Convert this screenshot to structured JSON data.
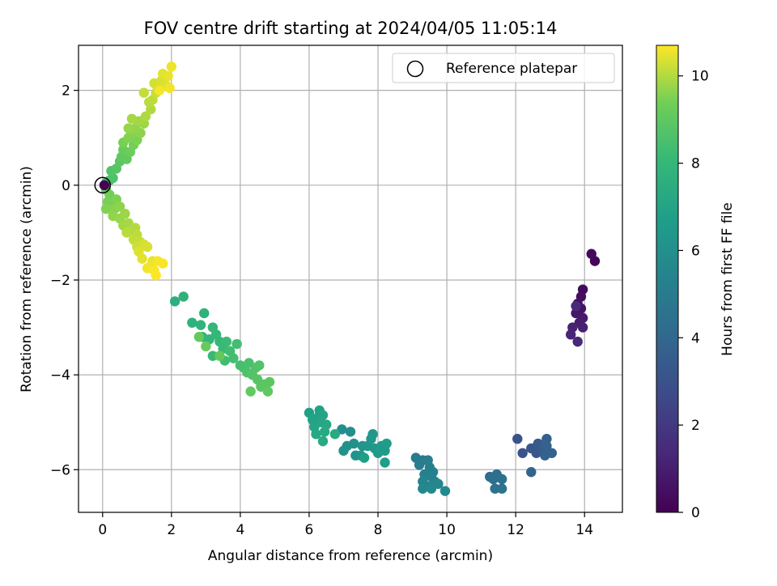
{
  "chart_data": {
    "type": "scatter",
    "title": "FOV centre drift starting at 2024/04/05 11:05:14",
    "xlabel": "Angular distance from reference (arcmin)",
    "ylabel": "Rotation from reference (arcmin)",
    "xlim": [
      -0.7,
      15.1
    ],
    "ylim": [
      -6.9,
      2.95
    ],
    "xticks": [
      0,
      2,
      4,
      6,
      8,
      10,
      12,
      14
    ],
    "yticks": [
      -6,
      -4,
      -2,
      0,
      2
    ],
    "grid": true,
    "legend": {
      "position": "top-right",
      "entries": [
        "Reference platepar"
      ]
    },
    "reference_point": {
      "name": "Reference platepar",
      "x": 0,
      "y": 0
    },
    "colorbar": {
      "label": "Hours from first FF file",
      "range": [
        0,
        10.7
      ],
      "ticks": [
        0,
        2,
        4,
        6,
        8,
        10
      ],
      "colormap": "viridis"
    },
    "points": [
      {
        "x": 14.3,
        "y": -1.6,
        "h": 0.15
      },
      {
        "x": 14.2,
        "y": -1.45,
        "h": 0.25
      },
      {
        "x": 13.95,
        "y": -2.2,
        "h": 0.35
      },
      {
        "x": 13.9,
        "y": -2.35,
        "h": 0.45
      },
      {
        "x": 13.8,
        "y": -2.5,
        "h": 0.55
      },
      {
        "x": 13.9,
        "y": -2.6,
        "h": 0.65
      },
      {
        "x": 13.75,
        "y": -2.7,
        "h": 0.75
      },
      {
        "x": 13.95,
        "y": -2.8,
        "h": 0.85
      },
      {
        "x": 13.85,
        "y": -2.9,
        "h": 0.95
      },
      {
        "x": 13.95,
        "y": -3.0,
        "h": 1.05
      },
      {
        "x": 13.65,
        "y": -3.0,
        "h": 1.15
      },
      {
        "x": 13.6,
        "y": -3.15,
        "h": 1.25
      },
      {
        "x": 13.8,
        "y": -3.3,
        "h": 1.35
      },
      {
        "x": 13.75,
        "y": -2.55,
        "h": 1.45
      },
      {
        "x": 12.05,
        "y": -5.35,
        "h": 3.0
      },
      {
        "x": 12.2,
        "y": -5.65,
        "h": 3.1
      },
      {
        "x": 12.45,
        "y": -5.55,
        "h": 3.2
      },
      {
        "x": 12.6,
        "y": -5.65,
        "h": 3.3
      },
      {
        "x": 12.65,
        "y": -5.45,
        "h": 3.4
      },
      {
        "x": 12.8,
        "y": -5.55,
        "h": 3.5
      },
      {
        "x": 12.9,
        "y": -5.35,
        "h": 3.6
      },
      {
        "x": 12.9,
        "y": -5.5,
        "h": 3.7
      },
      {
        "x": 13.05,
        "y": -5.65,
        "h": 3.75
      },
      {
        "x": 12.85,
        "y": -5.7,
        "h": 3.8
      },
      {
        "x": 12.45,
        "y": -6.05,
        "h": 3.9
      },
      {
        "x": 11.25,
        "y": -6.15,
        "h": 4.2
      },
      {
        "x": 11.45,
        "y": -6.1,
        "h": 4.3
      },
      {
        "x": 11.35,
        "y": -6.2,
        "h": 4.35
      },
      {
        "x": 11.6,
        "y": -6.2,
        "h": 4.4
      },
      {
        "x": 11.4,
        "y": -6.4,
        "h": 4.5
      },
      {
        "x": 11.6,
        "y": -6.4,
        "h": 4.55
      },
      {
        "x": 9.1,
        "y": -5.75,
        "h": 5.0
      },
      {
        "x": 9.3,
        "y": -5.8,
        "h": 5.05
      },
      {
        "x": 9.2,
        "y": -5.9,
        "h": 5.1
      },
      {
        "x": 9.45,
        "y": -5.8,
        "h": 5.15
      },
      {
        "x": 9.5,
        "y": -5.95,
        "h": 5.2
      },
      {
        "x": 9.6,
        "y": -6.05,
        "h": 5.25
      },
      {
        "x": 9.35,
        "y": -6.1,
        "h": 5.3
      },
      {
        "x": 9.55,
        "y": -6.15,
        "h": 5.35
      },
      {
        "x": 9.65,
        "y": -6.25,
        "h": 5.4
      },
      {
        "x": 9.3,
        "y": -6.25,
        "h": 5.45
      },
      {
        "x": 9.45,
        "y": -6.35,
        "h": 5.5
      },
      {
        "x": 9.75,
        "y": -6.3,
        "h": 5.55
      },
      {
        "x": 9.3,
        "y": -6.4,
        "h": 5.6
      },
      {
        "x": 9.55,
        "y": -6.4,
        "h": 5.65
      },
      {
        "x": 9.95,
        "y": -6.45,
        "h": 5.7
      },
      {
        "x": 7.2,
        "y": -5.2,
        "h": 5.9
      },
      {
        "x": 6.95,
        "y": -5.15,
        "h": 5.95
      },
      {
        "x": 7.3,
        "y": -5.45,
        "h": 6.0
      },
      {
        "x": 7.1,
        "y": -5.5,
        "h": 6.05
      },
      {
        "x": 7.0,
        "y": -5.6,
        "h": 6.1
      },
      {
        "x": 7.35,
        "y": -5.7,
        "h": 6.15
      },
      {
        "x": 7.55,
        "y": -5.5,
        "h": 6.2
      },
      {
        "x": 7.5,
        "y": -5.7,
        "h": 6.25
      },
      {
        "x": 7.7,
        "y": -5.5,
        "h": 6.3
      },
      {
        "x": 7.85,
        "y": -5.25,
        "h": 6.35
      },
      {
        "x": 7.8,
        "y": -5.35,
        "h": 6.4
      },
      {
        "x": 7.9,
        "y": -5.55,
        "h": 6.45
      },
      {
        "x": 8.0,
        "y": -5.65,
        "h": 6.5
      },
      {
        "x": 8.1,
        "y": -5.5,
        "h": 6.55
      },
      {
        "x": 8.2,
        "y": -5.6,
        "h": 6.6
      },
      {
        "x": 8.25,
        "y": -5.45,
        "h": 6.65
      },
      {
        "x": 8.2,
        "y": -5.85,
        "h": 6.7
      },
      {
        "x": 7.6,
        "y": -5.75,
        "h": 6.75
      },
      {
        "x": 6.0,
        "y": -4.8,
        "h": 6.8
      },
      {
        "x": 6.3,
        "y": -4.75,
        "h": 6.85
      },
      {
        "x": 6.1,
        "y": -4.95,
        "h": 6.9
      },
      {
        "x": 6.25,
        "y": -4.9,
        "h": 6.95
      },
      {
        "x": 6.4,
        "y": -4.85,
        "h": 7.0
      },
      {
        "x": 6.15,
        "y": -5.1,
        "h": 7.05
      },
      {
        "x": 6.35,
        "y": -5.0,
        "h": 7.1
      },
      {
        "x": 6.5,
        "y": -5.05,
        "h": 7.15
      },
      {
        "x": 6.2,
        "y": -5.25,
        "h": 7.2
      },
      {
        "x": 6.45,
        "y": -5.2,
        "h": 7.25
      },
      {
        "x": 6.4,
        "y": -5.4,
        "h": 7.3
      },
      {
        "x": 6.75,
        "y": -5.25,
        "h": 7.35
      },
      {
        "x": 2.1,
        "y": -2.45,
        "h": 7.6
      },
      {
        "x": 2.35,
        "y": -2.35,
        "h": 7.65
      },
      {
        "x": 2.6,
        "y": -2.9,
        "h": 7.7
      },
      {
        "x": 2.95,
        "y": -2.7,
        "h": 7.75
      },
      {
        "x": 2.85,
        "y": -2.95,
        "h": 7.8
      },
      {
        "x": 2.9,
        "y": -3.2,
        "h": 7.85
      },
      {
        "x": 3.1,
        "y": -3.25,
        "h": 7.9
      },
      {
        "x": 3.2,
        "y": -3.0,
        "h": 7.95
      },
      {
        "x": 3.3,
        "y": -3.15,
        "h": 8.0
      },
      {
        "x": 3.4,
        "y": -3.3,
        "h": 8.05
      },
      {
        "x": 3.2,
        "y": -3.6,
        "h": 8.1
      },
      {
        "x": 3.5,
        "y": -3.45,
        "h": 8.15
      },
      {
        "x": 3.6,
        "y": -3.3,
        "h": 8.2
      },
      {
        "x": 3.7,
        "y": -3.5,
        "h": 8.25
      },
      {
        "x": 3.55,
        "y": -3.7,
        "h": 8.3
      },
      {
        "x": 3.9,
        "y": -3.35,
        "h": 8.35
      },
      {
        "x": 3.8,
        "y": -3.65,
        "h": 8.4
      },
      {
        "x": 4.0,
        "y": -3.8,
        "h": 8.45
      },
      {
        "x": 4.1,
        "y": -3.85,
        "h": 8.5
      },
      {
        "x": 4.25,
        "y": -3.75,
        "h": 8.55
      },
      {
        "x": 4.2,
        "y": -3.95,
        "h": 8.6
      },
      {
        "x": 4.45,
        "y": -3.85,
        "h": 8.65
      },
      {
        "x": 4.55,
        "y": -3.8,
        "h": 8.7
      },
      {
        "x": 4.35,
        "y": -4.0,
        "h": 8.75
      },
      {
        "x": 4.5,
        "y": -4.1,
        "h": 8.8
      },
      {
        "x": 4.7,
        "y": -4.2,
        "h": 8.85
      },
      {
        "x": 4.6,
        "y": -4.25,
        "h": 8.9
      },
      {
        "x": 4.85,
        "y": -4.15,
        "h": 8.95
      },
      {
        "x": 4.8,
        "y": -4.35,
        "h": 9.0
      },
      {
        "x": 4.3,
        "y": -4.35,
        "h": 9.05
      },
      {
        "x": 3.4,
        "y": -3.6,
        "h": 9.1
      },
      {
        "x": 2.8,
        "y": -3.2,
        "h": 9.15
      },
      {
        "x": 3.0,
        "y": -3.4,
        "h": 9.2
      },
      {
        "x": 0.1,
        "y": -0.1,
        "h": 9.3
      },
      {
        "x": 0.2,
        "y": -0.2,
        "h": 9.35
      },
      {
        "x": 0.3,
        "y": -0.35,
        "h": 9.4
      },
      {
        "x": 0.15,
        "y": -0.35,
        "h": 9.45
      },
      {
        "x": 0.4,
        "y": -0.3,
        "h": 9.5
      },
      {
        "x": 0.1,
        "y": -0.5,
        "h": 9.55
      },
      {
        "x": 0.35,
        "y": -0.5,
        "h": 9.6
      },
      {
        "x": 0.5,
        "y": -0.45,
        "h": 9.65
      },
      {
        "x": 0.3,
        "y": -0.65,
        "h": 9.7
      },
      {
        "x": 0.5,
        "y": -0.7,
        "h": 9.75
      },
      {
        "x": 0.65,
        "y": -0.6,
        "h": 9.8
      },
      {
        "x": 0.6,
        "y": -0.85,
        "h": 9.85
      },
      {
        "x": 0.75,
        "y": -0.8,
        "h": 9.9
      },
      {
        "x": 0.85,
        "y": -0.95,
        "h": 9.95
      },
      {
        "x": 0.95,
        "y": -0.9,
        "h": 10.0
      },
      {
        "x": 0.7,
        "y": -1.0,
        "h": 10.05
      },
      {
        "x": 1.0,
        "y": -1.05,
        "h": 10.1
      },
      {
        "x": 0.9,
        "y": -1.15,
        "h": 10.15
      },
      {
        "x": 1.1,
        "y": -1.2,
        "h": 10.2
      },
      {
        "x": 1.0,
        "y": -1.3,
        "h": 10.25
      },
      {
        "x": 1.2,
        "y": -1.25,
        "h": 10.3
      },
      {
        "x": 1.3,
        "y": -1.3,
        "h": 10.35
      },
      {
        "x": 1.05,
        "y": -1.4,
        "h": 10.4
      },
      {
        "x": 1.15,
        "y": -1.55,
        "h": 10.45
      },
      {
        "x": 1.45,
        "y": -1.6,
        "h": 10.5
      },
      {
        "x": 1.4,
        "y": -1.7,
        "h": 10.55
      },
      {
        "x": 1.3,
        "y": -1.75,
        "h": 10.6
      },
      {
        "x": 1.6,
        "y": -1.6,
        "h": 10.62
      },
      {
        "x": 1.75,
        "y": -1.65,
        "h": 10.64
      },
      {
        "x": 1.5,
        "y": -1.8,
        "h": 10.66
      },
      {
        "x": 1.55,
        "y": -1.9,
        "h": 10.68
      },
      {
        "x": 0.1,
        "y": 0.05,
        "h": 8.4
      },
      {
        "x": 0.2,
        "y": 0.1,
        "h": 8.5
      },
      {
        "x": 0.3,
        "y": 0.15,
        "h": 8.6
      },
      {
        "x": 0.25,
        "y": 0.3,
        "h": 8.7
      },
      {
        "x": 0.4,
        "y": 0.35,
        "h": 8.8
      },
      {
        "x": 0.5,
        "y": 0.5,
        "h": 8.9
      },
      {
        "x": 0.55,
        "y": 0.6,
        "h": 9.0
      },
      {
        "x": 0.7,
        "y": 0.55,
        "h": 9.1
      },
      {
        "x": 0.6,
        "y": 0.75,
        "h": 9.2
      },
      {
        "x": 0.8,
        "y": 0.7,
        "h": 9.3
      },
      {
        "x": 0.9,
        "y": 0.85,
        "h": 9.4
      },
      {
        "x": 0.6,
        "y": 0.9,
        "h": 9.45
      },
      {
        "x": 1.0,
        "y": 0.95,
        "h": 9.5
      },
      {
        "x": 0.75,
        "y": 1.0,
        "h": 9.55
      },
      {
        "x": 0.85,
        "y": 1.1,
        "h": 9.6
      },
      {
        "x": 1.1,
        "y": 1.1,
        "h": 9.65
      },
      {
        "x": 0.95,
        "y": 1.2,
        "h": 9.7
      },
      {
        "x": 0.75,
        "y": 1.2,
        "h": 9.75
      },
      {
        "x": 1.2,
        "y": 1.3,
        "h": 9.8
      },
      {
        "x": 1.05,
        "y": 1.35,
        "h": 9.85
      },
      {
        "x": 0.85,
        "y": 1.4,
        "h": 9.9
      },
      {
        "x": 1.25,
        "y": 1.45,
        "h": 9.95
      },
      {
        "x": 1.4,
        "y": 1.6,
        "h": 10.0
      },
      {
        "x": 1.35,
        "y": 1.75,
        "h": 10.05
      },
      {
        "x": 1.45,
        "y": 1.8,
        "h": 10.1
      },
      {
        "x": 1.2,
        "y": 1.95,
        "h": 10.15
      },
      {
        "x": 1.55,
        "y": 1.95,
        "h": 10.2
      },
      {
        "x": 1.6,
        "y": 2.05,
        "h": 10.25
      },
      {
        "x": 1.5,
        "y": 2.15,
        "h": 10.3
      },
      {
        "x": 1.7,
        "y": 2.2,
        "h": 10.35
      },
      {
        "x": 1.85,
        "y": 2.1,
        "h": 10.4
      },
      {
        "x": 1.75,
        "y": 2.35,
        "h": 10.45
      },
      {
        "x": 1.9,
        "y": 2.3,
        "h": 10.5
      },
      {
        "x": 2.0,
        "y": 2.5,
        "h": 10.55
      },
      {
        "x": 1.95,
        "y": 2.05,
        "h": 10.6
      },
      {
        "x": 1.65,
        "y": 2.0,
        "h": 10.62
      },
      {
        "x": 0.05,
        "y": 0.0,
        "h": 0.0
      }
    ]
  }
}
